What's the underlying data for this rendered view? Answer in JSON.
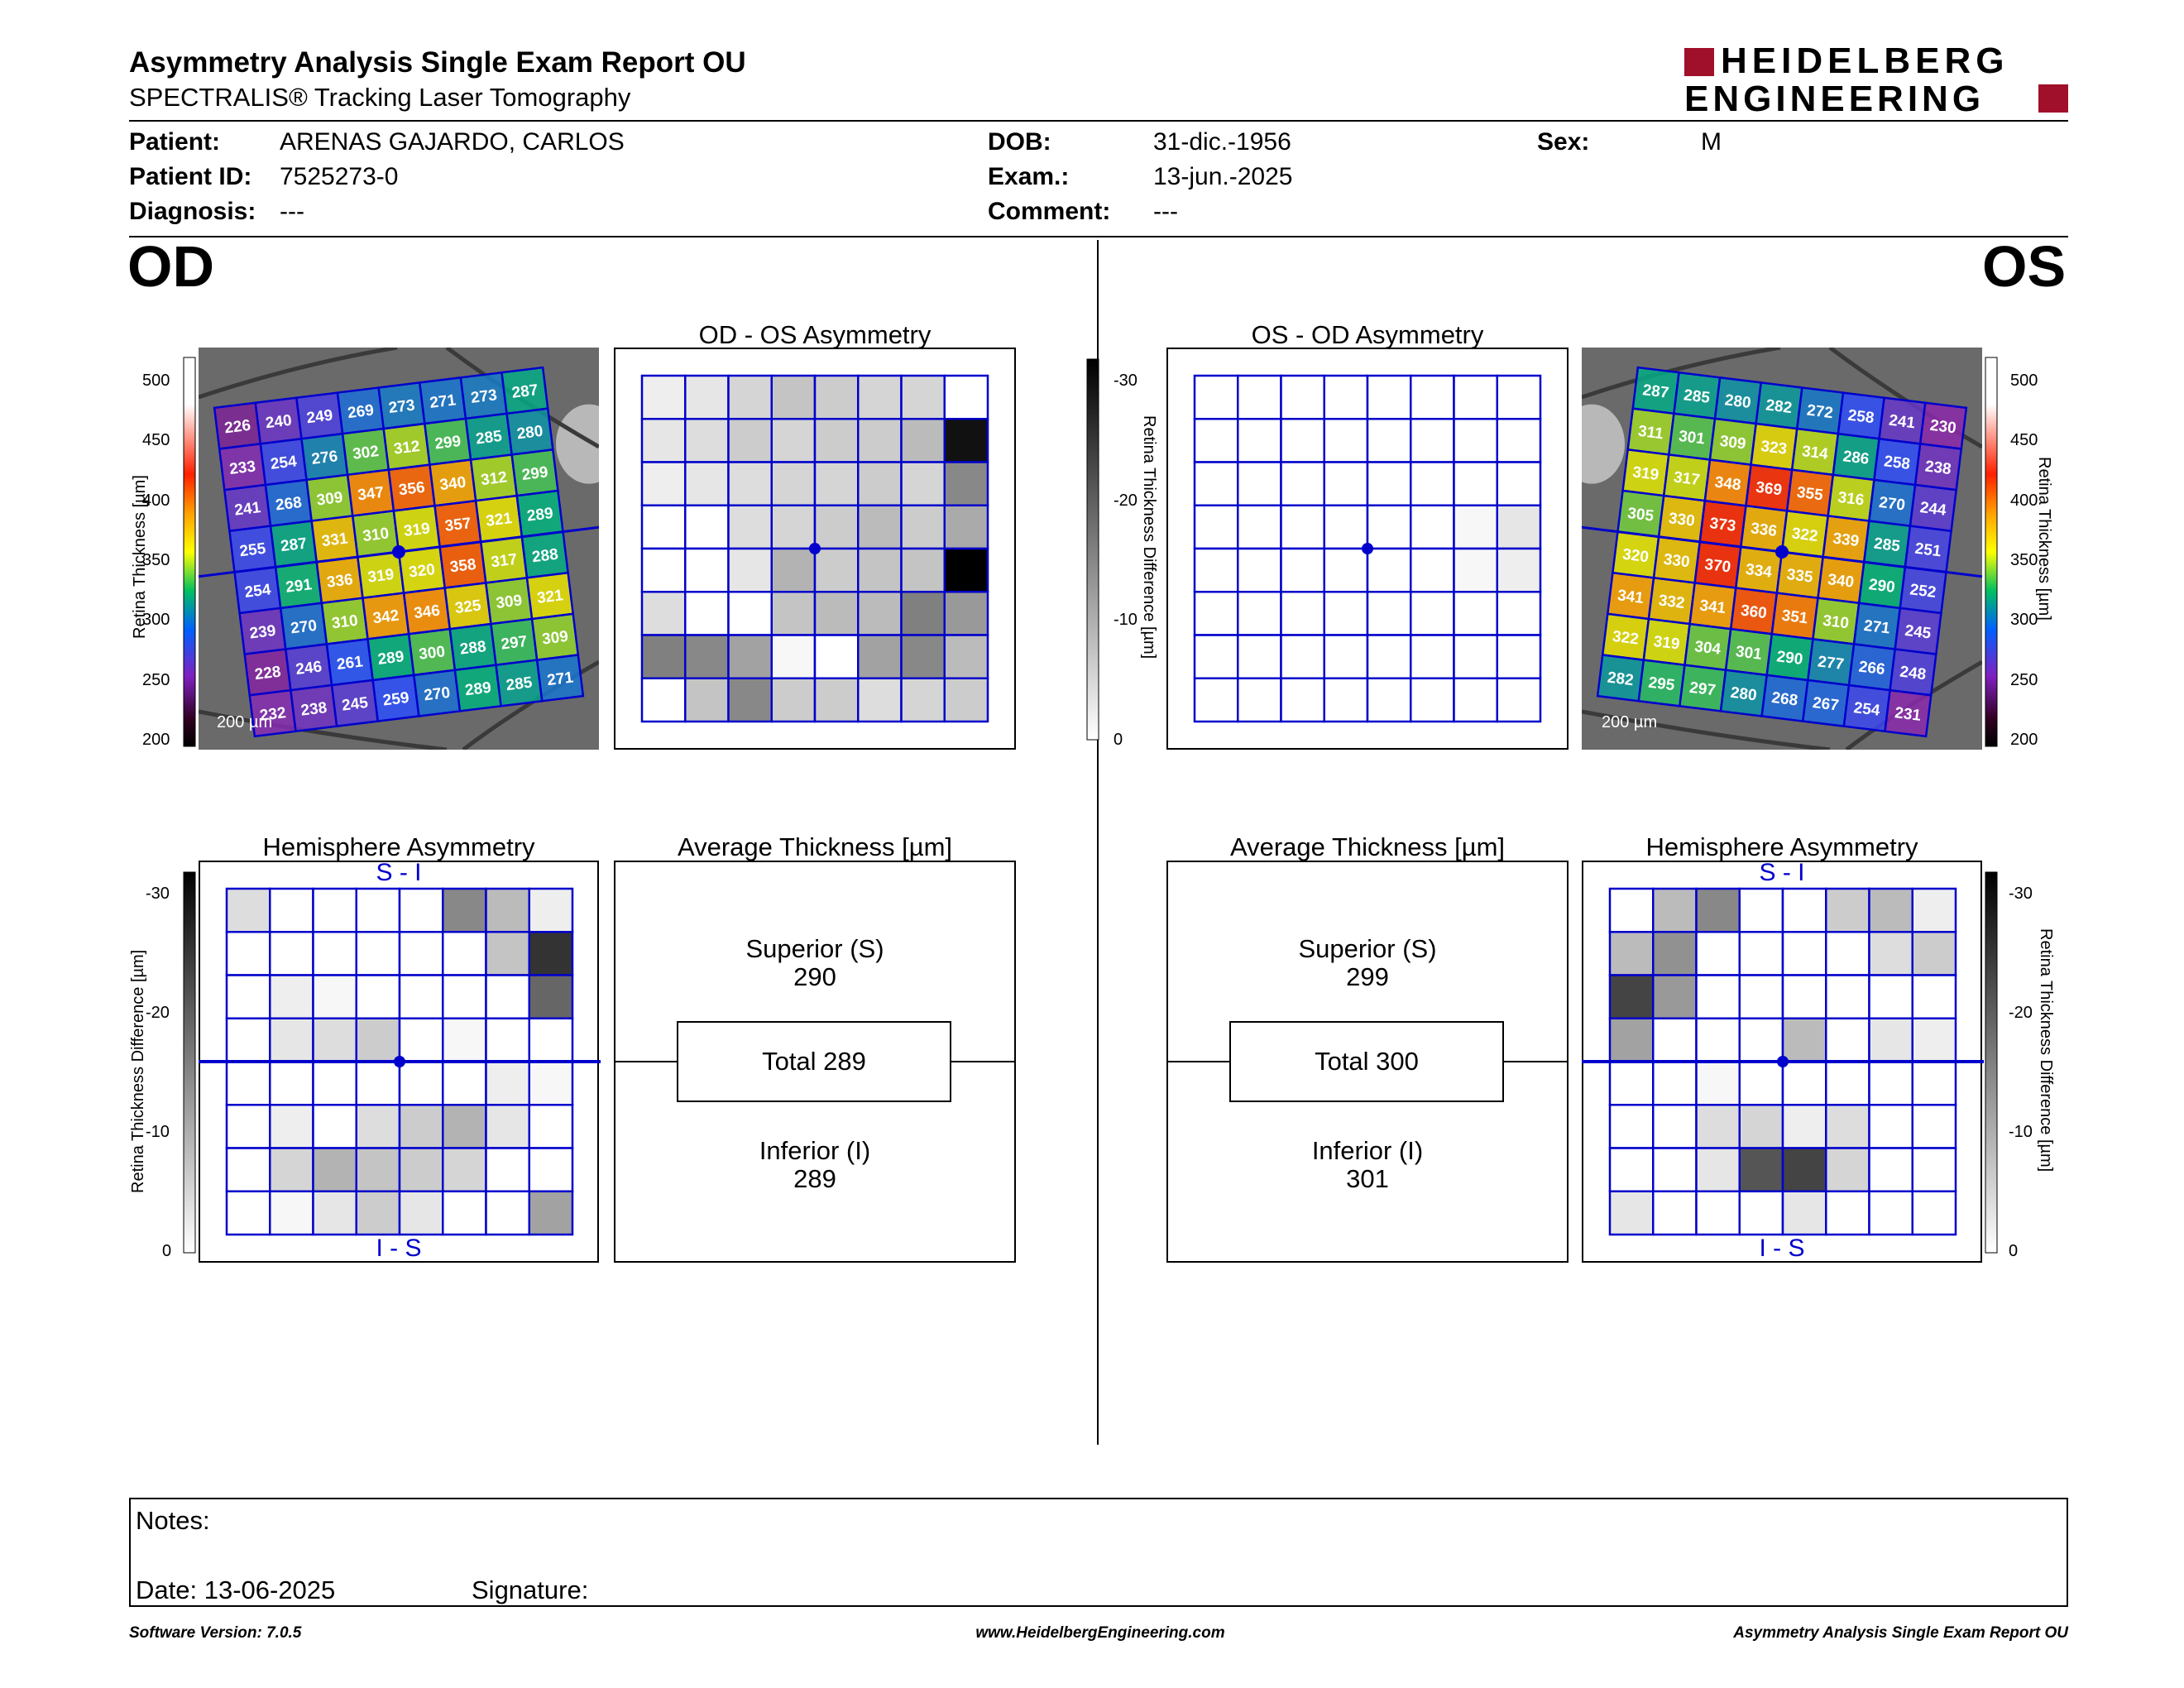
{
  "header": {
    "title": "Asymmetry Analysis Single Exam Report OU",
    "subtitle": "SPECTRALIS® Tracking Laser Tomography",
    "logo_line1": "HEIDELBERG",
    "logo_line2": "ENGINEERING"
  },
  "patient": {
    "patient_label": "Patient:",
    "patient_value": "ARENAS GAJARDO, CARLOS",
    "id_label": "Patient ID:",
    "id_value": "7525273-0",
    "diagnosis_label": "Diagnosis:",
    "diagnosis_value": "---",
    "dob_label": "DOB:",
    "dob_value": "31-dic.-1956",
    "exam_label": "Exam.:",
    "exam_value": "13-jun.-2025",
    "comment_label": "Comment:",
    "comment_value": "---",
    "sex_label": "Sex:",
    "sex_value": "M"
  },
  "od": {
    "eye_label": "OD",
    "asym_title": "OD - OS Asymmetry",
    "hemi_title": "Hemisphere Asymmetry",
    "avg_title": "Average Thickness [µm]",
    "hemi_top": "S - I",
    "hemi_bottom": "I - S",
    "scale_bar": "200 µm",
    "superior_label": "Superior (S)",
    "superior_value": "290",
    "total_label": "Total 289",
    "inferior_label": "Inferior (I)",
    "inferior_value": "289",
    "thickness_grid": [
      [
        226,
        240,
        249,
        269,
        273,
        271,
        273,
        287
      ],
      [
        233,
        254,
        276,
        302,
        312,
        299,
        285,
        280
      ],
      [
        241,
        268,
        309,
        347,
        356,
        340,
        312,
        299
      ],
      [
        255,
        287,
        331,
        310,
        319,
        357,
        321,
        289
      ],
      [
        254,
        291,
        336,
        319,
        320,
        358,
        317,
        288
      ],
      [
        239,
        270,
        310,
        342,
        346,
        325,
        309,
        321
      ],
      [
        228,
        246,
        261,
        289,
        300,
        288,
        297,
        309
      ],
      [
        232,
        238,
        245,
        259,
        270,
        289,
        285,
        271
      ]
    ],
    "asym_grid": [
      [
        2,
        3,
        5,
        7,
        6,
        5,
        5,
        0
      ],
      [
        3,
        4,
        6,
        5,
        6,
        6,
        8,
        28
      ],
      [
        2,
        3,
        4,
        5,
        5,
        6,
        5,
        14
      ],
      [
        0,
        0,
        4,
        5,
        6,
        8,
        6,
        10
      ],
      [
        0,
        0,
        3,
        9,
        6,
        7,
        7,
        30
      ],
      [
        4,
        0,
        0,
        7,
        8,
        8,
        15,
        12
      ],
      [
        15,
        14,
        11,
        1,
        0,
        11,
        14,
        8
      ],
      [
        0,
        7,
        14,
        6,
        6,
        4,
        5,
        6
      ]
    ],
    "hemi_grid": [
      [
        4,
        0,
        0,
        0,
        0,
        14,
        8,
        2
      ],
      [
        0,
        0,
        0,
        0,
        0,
        0,
        7,
        24
      ],
      [
        0,
        2,
        1,
        0,
        0,
        0,
        0,
        18
      ],
      [
        0,
        3,
        4,
        6,
        0,
        1,
        0,
        0
      ],
      [
        0,
        0,
        0,
        0,
        0,
        0,
        2,
        1
      ],
      [
        0,
        2,
        0,
        4,
        6,
        9,
        3,
        0
      ],
      [
        0,
        5,
        9,
        7,
        6,
        5,
        0,
        0
      ],
      [
        0,
        1,
        3,
        6,
        3,
        0,
        0,
        11
      ]
    ]
  },
  "os": {
    "eye_label": "OS",
    "asym_title": "OS - OD Asymmetry",
    "hemi_title": "Hemisphere Asymmetry",
    "avg_title": "Average Thickness [µm]",
    "hemi_top": "S - I",
    "hemi_bottom": "I - S",
    "scale_bar": "200 µm",
    "superior_label": "Superior (S)",
    "superior_value": "299",
    "total_label": "Total 300",
    "inferior_label": "Inferior (I)",
    "inferior_value": "301",
    "thickness_grid": [
      [
        287,
        285,
        280,
        282,
        272,
        258,
        241,
        230
      ],
      [
        311,
        301,
        309,
        323,
        314,
        286,
        258,
        238
      ],
      [
        319,
        317,
        348,
        369,
        355,
        316,
        270,
        244
      ],
      [
        305,
        330,
        373,
        336,
        322,
        339,
        285,
        251
      ],
      [
        320,
        330,
        370,
        334,
        335,
        340,
        290,
        252
      ],
      [
        341,
        332,
        341,
        360,
        351,
        310,
        271,
        245
      ],
      [
        322,
        319,
        304,
        301,
        290,
        277,
        266,
        248
      ],
      [
        282,
        295,
        297,
        280,
        268,
        267,
        254,
        231
      ]
    ],
    "asym_grid": [
      [
        0,
        0,
        0,
        0,
        0,
        0,
        0,
        0
      ],
      [
        0,
        0,
        0,
        0,
        0,
        0,
        0,
        0
      ],
      [
        0,
        0,
        0,
        0,
        0,
        0,
        0,
        0
      ],
      [
        0,
        0,
        0,
        0,
        0,
        0,
        1,
        3
      ],
      [
        0,
        0,
        0,
        0,
        0,
        0,
        1,
        2
      ],
      [
        0,
        0,
        0,
        0,
        0,
        0,
        0,
        0
      ],
      [
        0,
        0,
        0,
        0,
        0,
        0,
        0,
        0
      ],
      [
        0,
        0,
        0,
        0,
        0,
        0,
        0,
        0
      ]
    ],
    "hemi_grid": [
      [
        0,
        8,
        14,
        0,
        0,
        6,
        8,
        2
      ],
      [
        8,
        13,
        0,
        0,
        0,
        0,
        4,
        6
      ],
      [
        22,
        12,
        0,
        0,
        0,
        0,
        0,
        0
      ],
      [
        11,
        0,
        0,
        0,
        8,
        0,
        3,
        2
      ],
      [
        0,
        0,
        1,
        0,
        0,
        0,
        0,
        0
      ],
      [
        0,
        0,
        4,
        5,
        2,
        4,
        0,
        0
      ],
      [
        0,
        0,
        3,
        20,
        22,
        5,
        0,
        0
      ],
      [
        3,
        0,
        0,
        0,
        3,
        0,
        0,
        0
      ]
    ]
  },
  "scales": {
    "thickness_label": "Retina Thickness [µm]",
    "thickness_ticks": [
      "500",
      "450",
      "400",
      "350",
      "300",
      "250",
      "200"
    ],
    "diff_label": "Retina Thickness Difference [µm]",
    "diff_ticks": [
      "-30",
      "-20",
      "-10",
      "0"
    ]
  },
  "notes": {
    "notes_label": "Notes:",
    "date_label": "Date: 13-06-2025",
    "signature_label": "Signature:"
  },
  "footer": {
    "software": "Software Version: 7.0.5",
    "website": "www.HeidelbergEngineering.com",
    "report": "Asymmetry Analysis Single Exam Report OU"
  },
  "colors": {
    "grid_blue": "#0000cc",
    "brand_red": "#a0102a"
  }
}
